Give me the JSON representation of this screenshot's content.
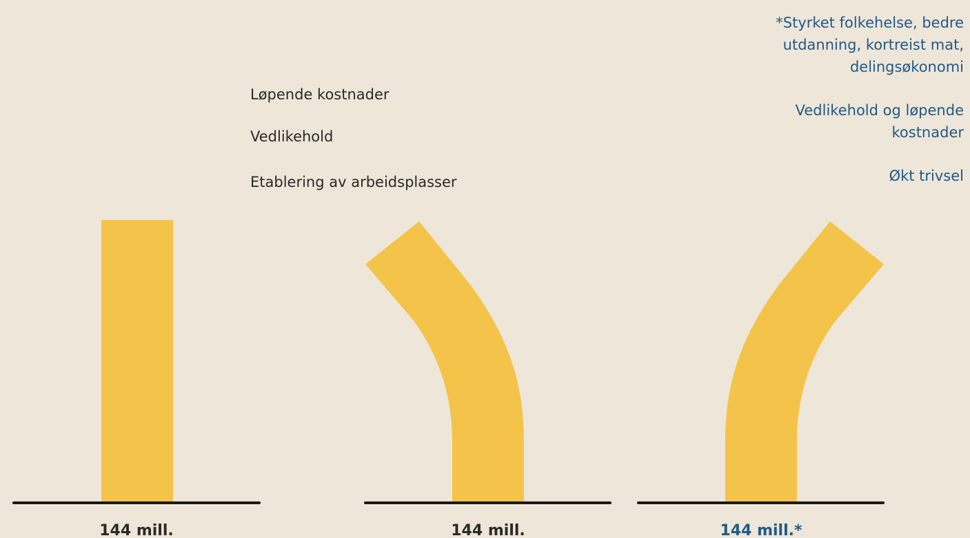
{
  "legend": [
    "Løpende kostnader",
    "Vedlikehold",
    "Etablering av arbeidsplasser"
  ],
  "notes": [
    {
      "lines": [
        "*Styrket folkehelse, bedre",
        "utdanning, kortreist mat,",
        "delingsøkonomi"
      ]
    },
    {
      "lines": [
        "Vedlikehold og løpende",
        "kostnader"
      ]
    },
    {
      "lines": [
        "Økt trivsel"
      ]
    }
  ],
  "columns": [
    {
      "label": "144 mill."
    },
    {
      "label": "144 mill."
    },
    {
      "label": "144 mill.*"
    }
  ]
}
